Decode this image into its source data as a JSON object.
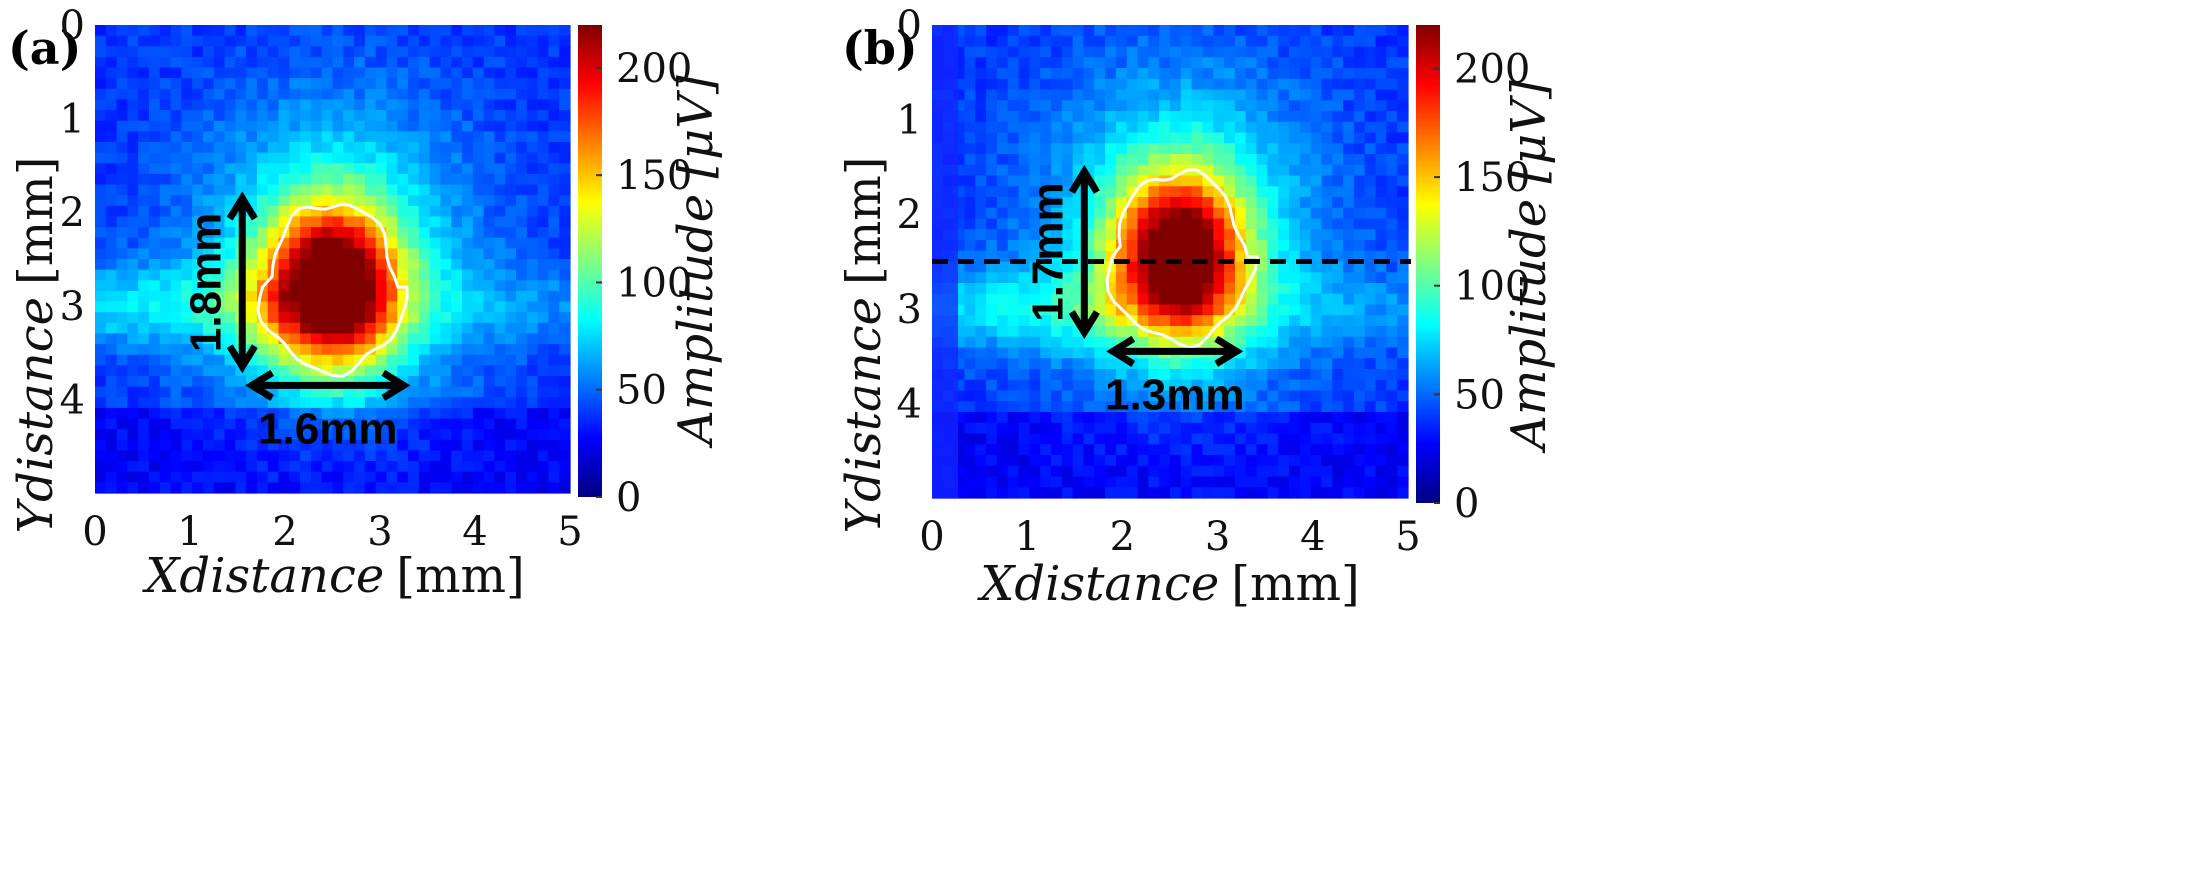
{
  "chart_data": [
    {
      "type": "heatmap",
      "panel_label": "(a)",
      "xlabel_var": "X",
      "xlabel_text": "distance",
      "xlabel_unit": "[mm]",
      "ylabel_var": "Y",
      "ylabel_text": "distance",
      "ylabel_unit": "[mm]",
      "xlim": [
        0,
        5
      ],
      "ylim": [
        0,
        5
      ],
      "x_ticks": [
        "0",
        "1",
        "2",
        "3",
        "4",
        "5"
      ],
      "y_ticks": [
        "0",
        "1",
        "2",
        "3",
        "4"
      ],
      "colorbar_label": "Amplitude [μV]",
      "colorbar_ticks": [
        "0",
        "50",
        "100",
        "150",
        "200"
      ],
      "colorbar_range": [
        0,
        220
      ],
      "peak": {
        "x": 2.5,
        "y": 2.8,
        "amplitude": 215
      },
      "contour_level": 100,
      "vertical_dimension": {
        "label": "1.8mm",
        "x": 1.55,
        "y_start": 1.85,
        "y_end": 3.65
      },
      "horizontal_dimension": {
        "label": "1.6mm",
        "y": 3.85,
        "x_start": 1.65,
        "x_end": 3.25
      },
      "dashed_line": null
    },
    {
      "type": "heatmap",
      "panel_label": "(b)",
      "xlabel_var": "X",
      "xlabel_text": "distance",
      "xlabel_unit": "[mm]",
      "ylabel_var": "Y",
      "ylabel_text": "distance",
      "ylabel_unit": "[mm]",
      "xlim": [
        0,
        5
      ],
      "ylim": [
        0,
        5
      ],
      "x_ticks": [
        "0",
        "1",
        "2",
        "3",
        "4",
        "5"
      ],
      "y_ticks": [
        "0",
        "1",
        "2",
        "3",
        "4"
      ],
      "colorbar_label": "Amplitude [μV]",
      "colorbar_ticks": [
        "0",
        "50",
        "100",
        "150",
        "200"
      ],
      "colorbar_range": [
        0,
        220
      ],
      "peak": {
        "x": 2.6,
        "y": 2.45,
        "amplitude": 205
      },
      "contour_level": 100,
      "vertical_dimension": {
        "label": "1.7mm",
        "x": 1.6,
        "y_start": 1.55,
        "y_end": 3.25
      },
      "horizontal_dimension": {
        "label": "1.3mm",
        "y": 3.45,
        "x_start": 1.9,
        "x_end": 3.2
      },
      "dashed_line": {
        "y": 2.5
      }
    }
  ]
}
